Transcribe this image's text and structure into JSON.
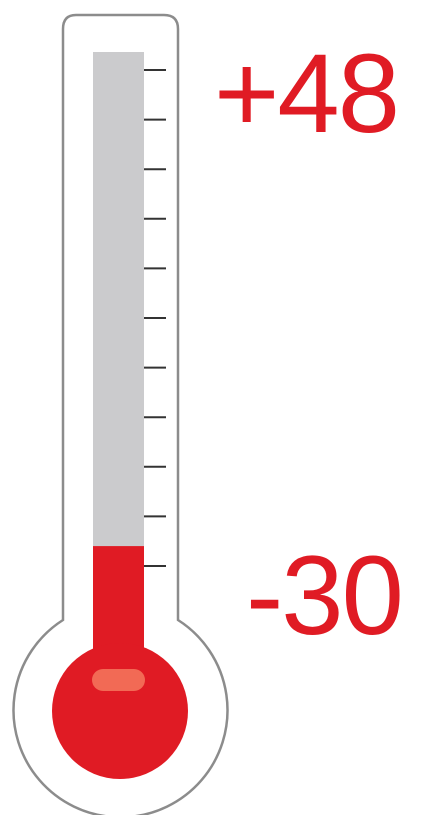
{
  "thermometer": {
    "max_label": "+48",
    "min_label": "-30",
    "fill_fraction": 0.19,
    "tick_count": 11,
    "colors": {
      "mercury": "#e01b24",
      "mercury_highlight": "#f26a55",
      "tube_empty": "#cbcbcd",
      "outline": "#8c8c8c",
      "ticks": "#333333",
      "label": "#e01b24"
    }
  }
}
